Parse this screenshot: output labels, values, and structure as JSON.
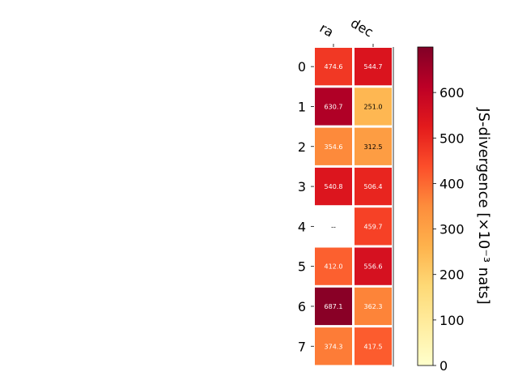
{
  "chart_data": {
    "type": "heatmap",
    "columns": [
      "ra",
      "dec"
    ],
    "rows": [
      "0",
      "1",
      "2",
      "3",
      "4",
      "5",
      "6",
      "7"
    ],
    "values": [
      [
        474.6,
        544.7
      ],
      [
        630.7,
        251.0
      ],
      [
        354.6,
        312.5
      ],
      [
        540.8,
        506.4
      ],
      [
        null,
        459.7
      ],
      [
        412.0,
        556.6
      ],
      [
        687.1,
        362.3
      ],
      [
        374.3,
        417.5
      ]
    ],
    "cell_labels": [
      [
        "474.6",
        "544.7"
      ],
      [
        "630.7",
        "251.0"
      ],
      [
        "354.6",
        "312.5"
      ],
      [
        "540.8",
        "506.4"
      ],
      [
        "--",
        "459.7"
      ],
      [
        "412.0",
        "556.6"
      ],
      [
        "687.1",
        "362.3"
      ],
      [
        "374.3",
        "417.5"
      ]
    ],
    "colorbar": {
      "label": "JS-divergence [×10⁻³ nats]",
      "range": [
        0,
        700
      ],
      "ticks": [
        0,
        100,
        200,
        300,
        400,
        500,
        600
      ],
      "colormap": "YlOrRd"
    },
    "grid": false
  }
}
